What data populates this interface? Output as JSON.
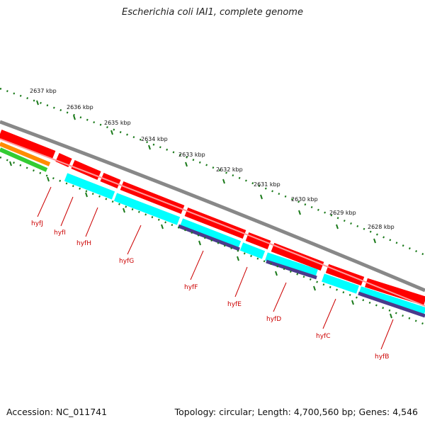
{
  "header": {
    "title": "Escherichia coli IAI1, complete genome"
  },
  "footer": {
    "accession": "Accession: NC_011741",
    "summary": "Topology: circular; Length: 4,700,560 bp; Genes: 4,546"
  },
  "scale": {
    "ticks": [
      "2637 kbp",
      "2636 kbp",
      "2635 kbp",
      "2634 kbp",
      "2633 kbp",
      "2632 kbp",
      "2631 kbp",
      "2630 kbp",
      "2629 kbp",
      "2628 kbp"
    ]
  },
  "genes": {
    "labels": [
      "hyfJ",
      "hyfI",
      "hyfH",
      "hyfG",
      "hyfF",
      "hyfE",
      "hyfD",
      "hyfC",
      "hyfB"
    ]
  },
  "colors": {
    "gene_red": "#ff0000",
    "gene_cyan": "#00ffff",
    "protein_purple": "#4b3a8c",
    "backbone_gray": "#888888",
    "tick_green": "#1a7a1a",
    "label_red": "#cc0000",
    "track_orange": "#ff8c00",
    "track_green": "#33cc33"
  }
}
